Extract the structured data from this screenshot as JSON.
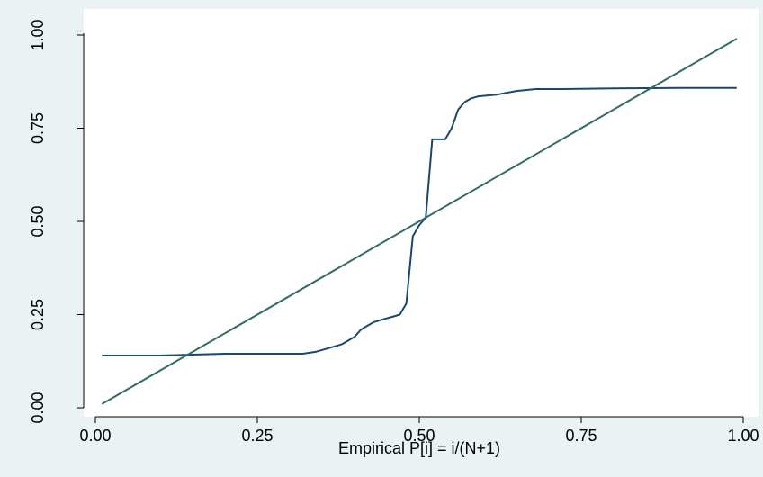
{
  "chart_data": {
    "type": "line",
    "title": "",
    "xlabel": "Empirical P[i] = i/(N+1)",
    "ylabel": "",
    "xlim": [
      0,
      1
    ],
    "ylim": [
      0,
      1
    ],
    "x_ticks": [
      "0.00",
      "0.25",
      "0.50",
      "0.75",
      "1.00"
    ],
    "y_ticks": [
      "0.00",
      "0.25",
      "0.50",
      "0.75",
      "1.00"
    ],
    "grid": false,
    "legend": "none",
    "series": [
      {
        "color": "#1a476f",
        "x": [
          0.01,
          0.1,
          0.2,
          0.25,
          0.3,
          0.32,
          0.34,
          0.36,
          0.38,
          0.39,
          0.4,
          0.41,
          0.42,
          0.43,
          0.44,
          0.45,
          0.46,
          0.47,
          0.48,
          0.49,
          0.5,
          0.51,
          0.52,
          0.53,
          0.54,
          0.55,
          0.56,
          0.57,
          0.58,
          0.59,
          0.6,
          0.62,
          0.65,
          0.68,
          0.72,
          0.8,
          0.9,
          0.99
        ],
        "values": [
          0.14,
          0.14,
          0.145,
          0.145,
          0.145,
          0.145,
          0.15,
          0.16,
          0.17,
          0.18,
          0.19,
          0.21,
          0.22,
          0.23,
          0.235,
          0.24,
          0.245,
          0.25,
          0.28,
          0.46,
          0.49,
          0.51,
          0.72,
          0.72,
          0.72,
          0.75,
          0.8,
          0.82,
          0.83,
          0.835,
          0.837,
          0.84,
          0.85,
          0.855,
          0.855,
          0.857,
          0.858,
          0.858
        ]
      },
      {
        "color": "#2d6d66",
        "x": [
          0.01,
          0.99
        ],
        "values": [
          0.01,
          0.99
        ]
      }
    ]
  }
}
